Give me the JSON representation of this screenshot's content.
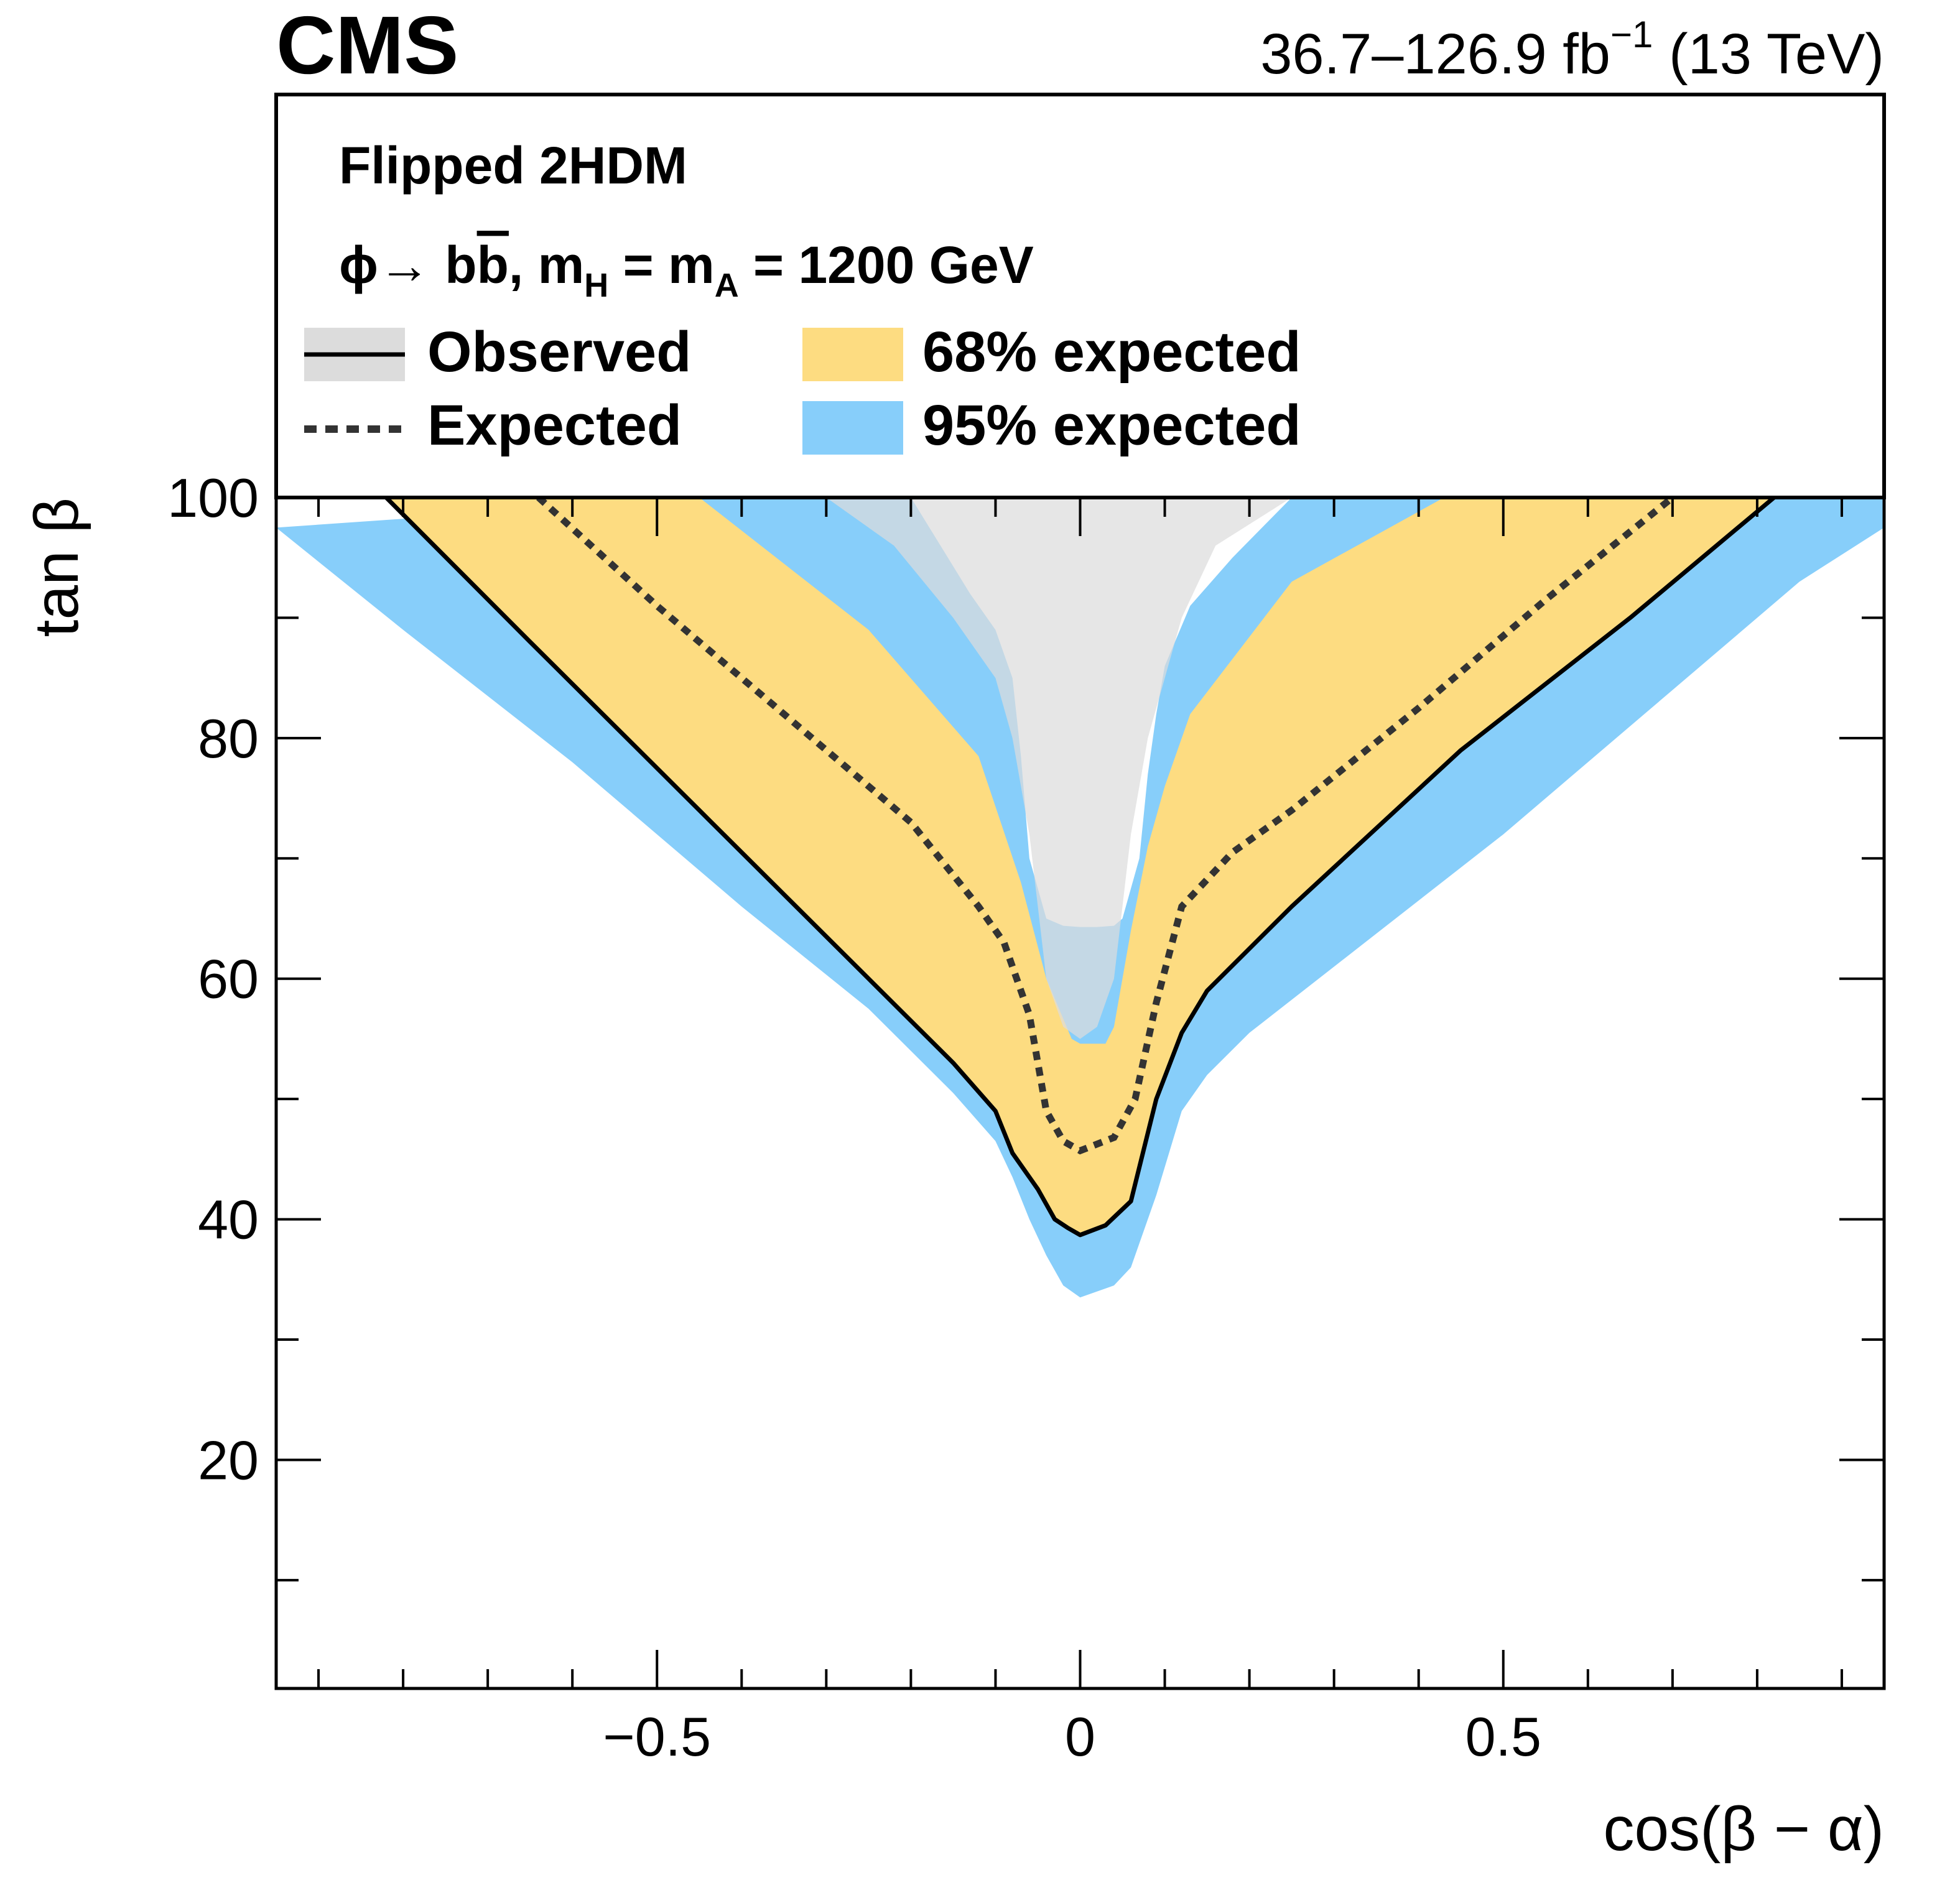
{
  "header": {
    "experiment": "CMS",
    "lumi_value": "36.7–126.9 fb",
    "lumi_exponent": "−1",
    "energy": " (13 TeV)"
  },
  "legend": {
    "model": "Flipped 2HDM",
    "process_prefix": "ϕ→ b",
    "process_bbar": "b",
    "process_mid1": ", m",
    "sub_h": "H",
    "process_mid2": " = m",
    "sub_a": "A",
    "process_suffix": " = 1200 GeV",
    "observed": "Observed",
    "expected": "Expected",
    "band68": "68% expected",
    "band95": "95% expected"
  },
  "colors": {
    "band95": "#87cefa",
    "band68": "#fddc81",
    "observed_fill": "#dcdcdc",
    "observed_line": "#000000",
    "expected_line": "#333333"
  },
  "chart_data": {
    "type": "area",
    "title": "",
    "xlabel": "cos(β − α)",
    "ylabel": "tan β",
    "xlim": [
      -0.95,
      0.95
    ],
    "ylim": [
      1,
      100
    ],
    "x_ticks": [
      -0.5,
      0,
      0.5
    ],
    "x_tick_labels": [
      "−0.5",
      "0",
      "0.5"
    ],
    "y_ticks": [
      20,
      40,
      60,
      80,
      100
    ],
    "y_tick_labels": [
      "20",
      "40",
      "60",
      "80",
      "100"
    ],
    "observed": {
      "x": [
        -0.82,
        -0.65,
        -0.45,
        -0.25,
        -0.15,
        -0.1,
        -0.08,
        -0.05,
        -0.03,
        -0.015,
        0.0,
        0.03,
        0.06,
        0.09,
        0.12,
        0.15,
        0.25,
        0.45,
        0.65,
        0.82
      ],
      "y": [
        100,
        88,
        74,
        60,
        53,
        49,
        45.5,
        42.5,
        40,
        39.3,
        38.7,
        39.5,
        41.5,
        50,
        55.5,
        59,
        66,
        79,
        90,
        100
      ]
    },
    "expected": {
      "x": [
        -0.64,
        -0.5,
        -0.35,
        -0.2,
        -0.12,
        -0.09,
        -0.06,
        -0.04,
        -0.02,
        0.0,
        0.04,
        0.065,
        0.09,
        0.12,
        0.18,
        0.25,
        0.4,
        0.55,
        0.7
      ],
      "y": [
        100,
        91,
        82,
        73,
        66,
        63,
        57,
        49,
        46.5,
        45.7,
        46.8,
        50,
        58,
        66,
        70.5,
        74,
        82.5,
        91.5,
        100
      ]
    },
    "band68": {
      "x": [
        -0.82,
        -0.65,
        -0.45,
        -0.25,
        -0.15,
        -0.1,
        -0.08,
        -0.05,
        -0.03,
        -0.015,
        0.0,
        0.03,
        0.06,
        0.09,
        0.12,
        0.15,
        0.25,
        0.45,
        0.65,
        0.82,
        0.43,
        0.25,
        0.13,
        0.1,
        0.08,
        0.06,
        0.04,
        0.03,
        0.0,
        -0.01,
        -0.04,
        -0.07,
        -0.12,
        -0.25,
        -0.45
      ],
      "y": [
        100,
        88,
        74,
        60,
        53,
        49,
        45.5,
        42.5,
        40,
        39.3,
        38.7,
        39.5,
        41.5,
        50,
        55.5,
        59,
        66,
        79,
        90,
        100,
        100,
        93,
        82,
        76,
        71,
        64,
        56,
        54.6,
        54.6,
        55,
        60,
        68,
        78.5,
        89,
        100
      ]
    },
    "band95": {
      "x": [
        -0.95,
        -0.8,
        -0.6,
        -0.4,
        -0.25,
        -0.15,
        -0.1,
        -0.08,
        -0.06,
        -0.04,
        -0.02,
        0.0,
        0.04,
        0.06,
        0.09,
        0.12,
        0.15,
        0.2,
        0.3,
        0.5,
        0.7,
        0.85,
        0.95,
        0.95,
        0.25,
        0.18,
        0.13,
        0.1,
        0.09,
        0.08,
        0.07,
        0.05,
        0.04,
        0.02,
        0.0,
        -0.02,
        -0.04,
        -0.06,
        -0.07,
        -0.08,
        -0.1,
        -0.13,
        -0.2,
        -0.44
      ],
      "y": [
        97.5,
        89,
        78,
        66,
        57.5,
        50.5,
        46.5,
        43.5,
        40,
        37,
        34.5,
        33.5,
        34.5,
        36,
        42,
        49,
        52,
        55.5,
        61,
        72,
        84,
        93,
        97.5,
        100,
        100,
        95,
        91,
        86,
        82,
        77,
        70,
        65,
        64.4,
        64.3,
        64.3,
        64.4,
        65,
        70,
        78.5,
        85,
        89,
        92,
        100,
        100
      ]
    },
    "observed_excluded_fill": {
      "x": [
        -0.3,
        -0.22,
        -0.15,
        -0.1,
        -0.08,
        -0.06,
        -0.04,
        -0.02,
        0.0,
        0.02,
        0.04,
        0.06,
        0.08,
        0.1,
        0.12,
        0.16,
        0.25
      ],
      "y": [
        100,
        96,
        90,
        85,
        80,
        72,
        60,
        56,
        55,
        56,
        60,
        72,
        80,
        85,
        90,
        96,
        100
      ]
    }
  }
}
